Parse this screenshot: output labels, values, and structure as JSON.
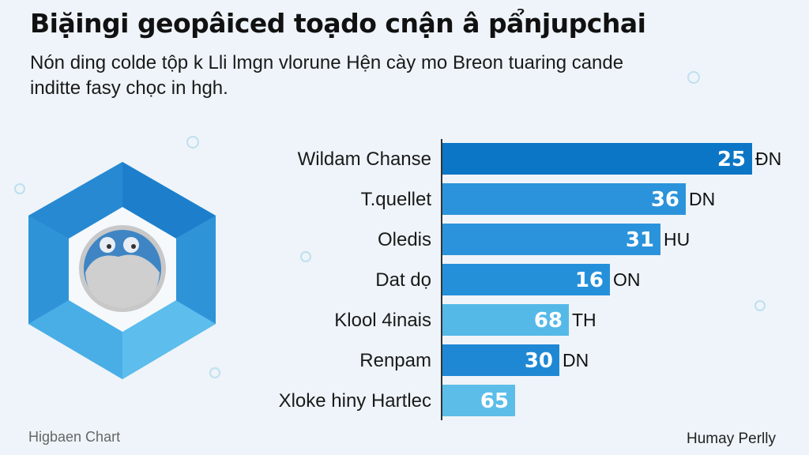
{
  "header": {
    "title": "Biặingi geopâiced toạdo cnận â pẩnjupchai",
    "subtitle": "Nón ding colde tộp k Lli lmgn vlorune Hện cày mo Breon tuaring cande inditte fasy chọc in hgh."
  },
  "footer": {
    "left": "Higbaen Chart",
    "right": "Humay Perlly"
  },
  "logo": {
    "name": "hexagon-face-logo"
  },
  "chart_data": {
    "type": "bar",
    "orientation": "horizontal",
    "categories": [
      "Wildam Chanse",
      "T.quellet",
      "Oledis",
      "Dat dọ",
      "Klool 4inais",
      "Renpam",
      "Xloke hiny Hartlec"
    ],
    "values": [
      25,
      36,
      31,
      16,
      68,
      30,
      65
    ],
    "units": [
      "ĐN",
      "DN",
      "HU",
      "ON",
      "TH",
      "DN",
      ""
    ],
    "bar_fill_pct": [
      98,
      77,
      69,
      53,
      40,
      37,
      23
    ],
    "colors": [
      "#0b76c6",
      "#2a93db",
      "#2a93db",
      "#2590da",
      "#55b9e8",
      "#1f88d4",
      "#5cbde8"
    ],
    "grid": false,
    "legend": "none"
  }
}
